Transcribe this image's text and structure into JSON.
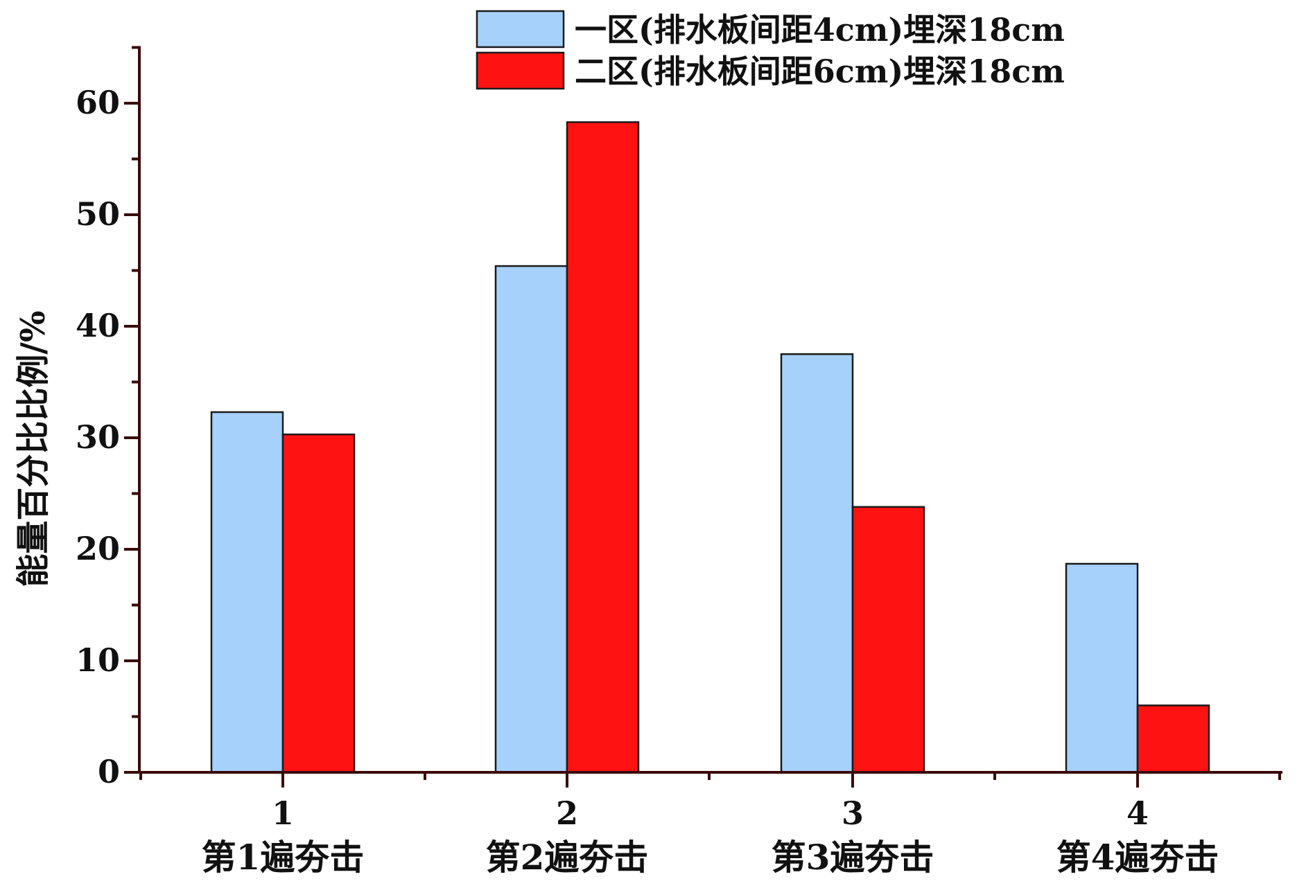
{
  "chart_data": {
    "type": "bar",
    "categories": [
      "1",
      "2",
      "3",
      "4"
    ],
    "category_sublabels": [
      "第1遍夯击",
      "第2遍夯击",
      "第3遍夯击",
      "第4遍夯击"
    ],
    "series": [
      {
        "name": "一区(排水板间距4cm)埋深18cm",
        "color": "#a6d1fb",
        "values": [
          32.3,
          45.4,
          37.5,
          18.7
        ]
      },
      {
        "name": "二区(排水板间距6cm)埋深18cm",
        "color": "#ff1212",
        "values": [
          30.3,
          58.3,
          23.8,
          6.0
        ]
      }
    ],
    "title": "",
    "xlabel": "",
    "ylabel": "能量百分比比例/%",
    "ylim": [
      0,
      65
    ],
    "yticks": [
      0,
      10,
      20,
      30,
      40,
      50,
      60
    ],
    "yticks_minor": [
      5,
      15,
      25,
      35,
      45,
      55,
      65
    ],
    "grid": false,
    "legend_position": "top-right",
    "axis_color": "#3a0a0a",
    "bar_outline_color": "#1a1a1a"
  }
}
